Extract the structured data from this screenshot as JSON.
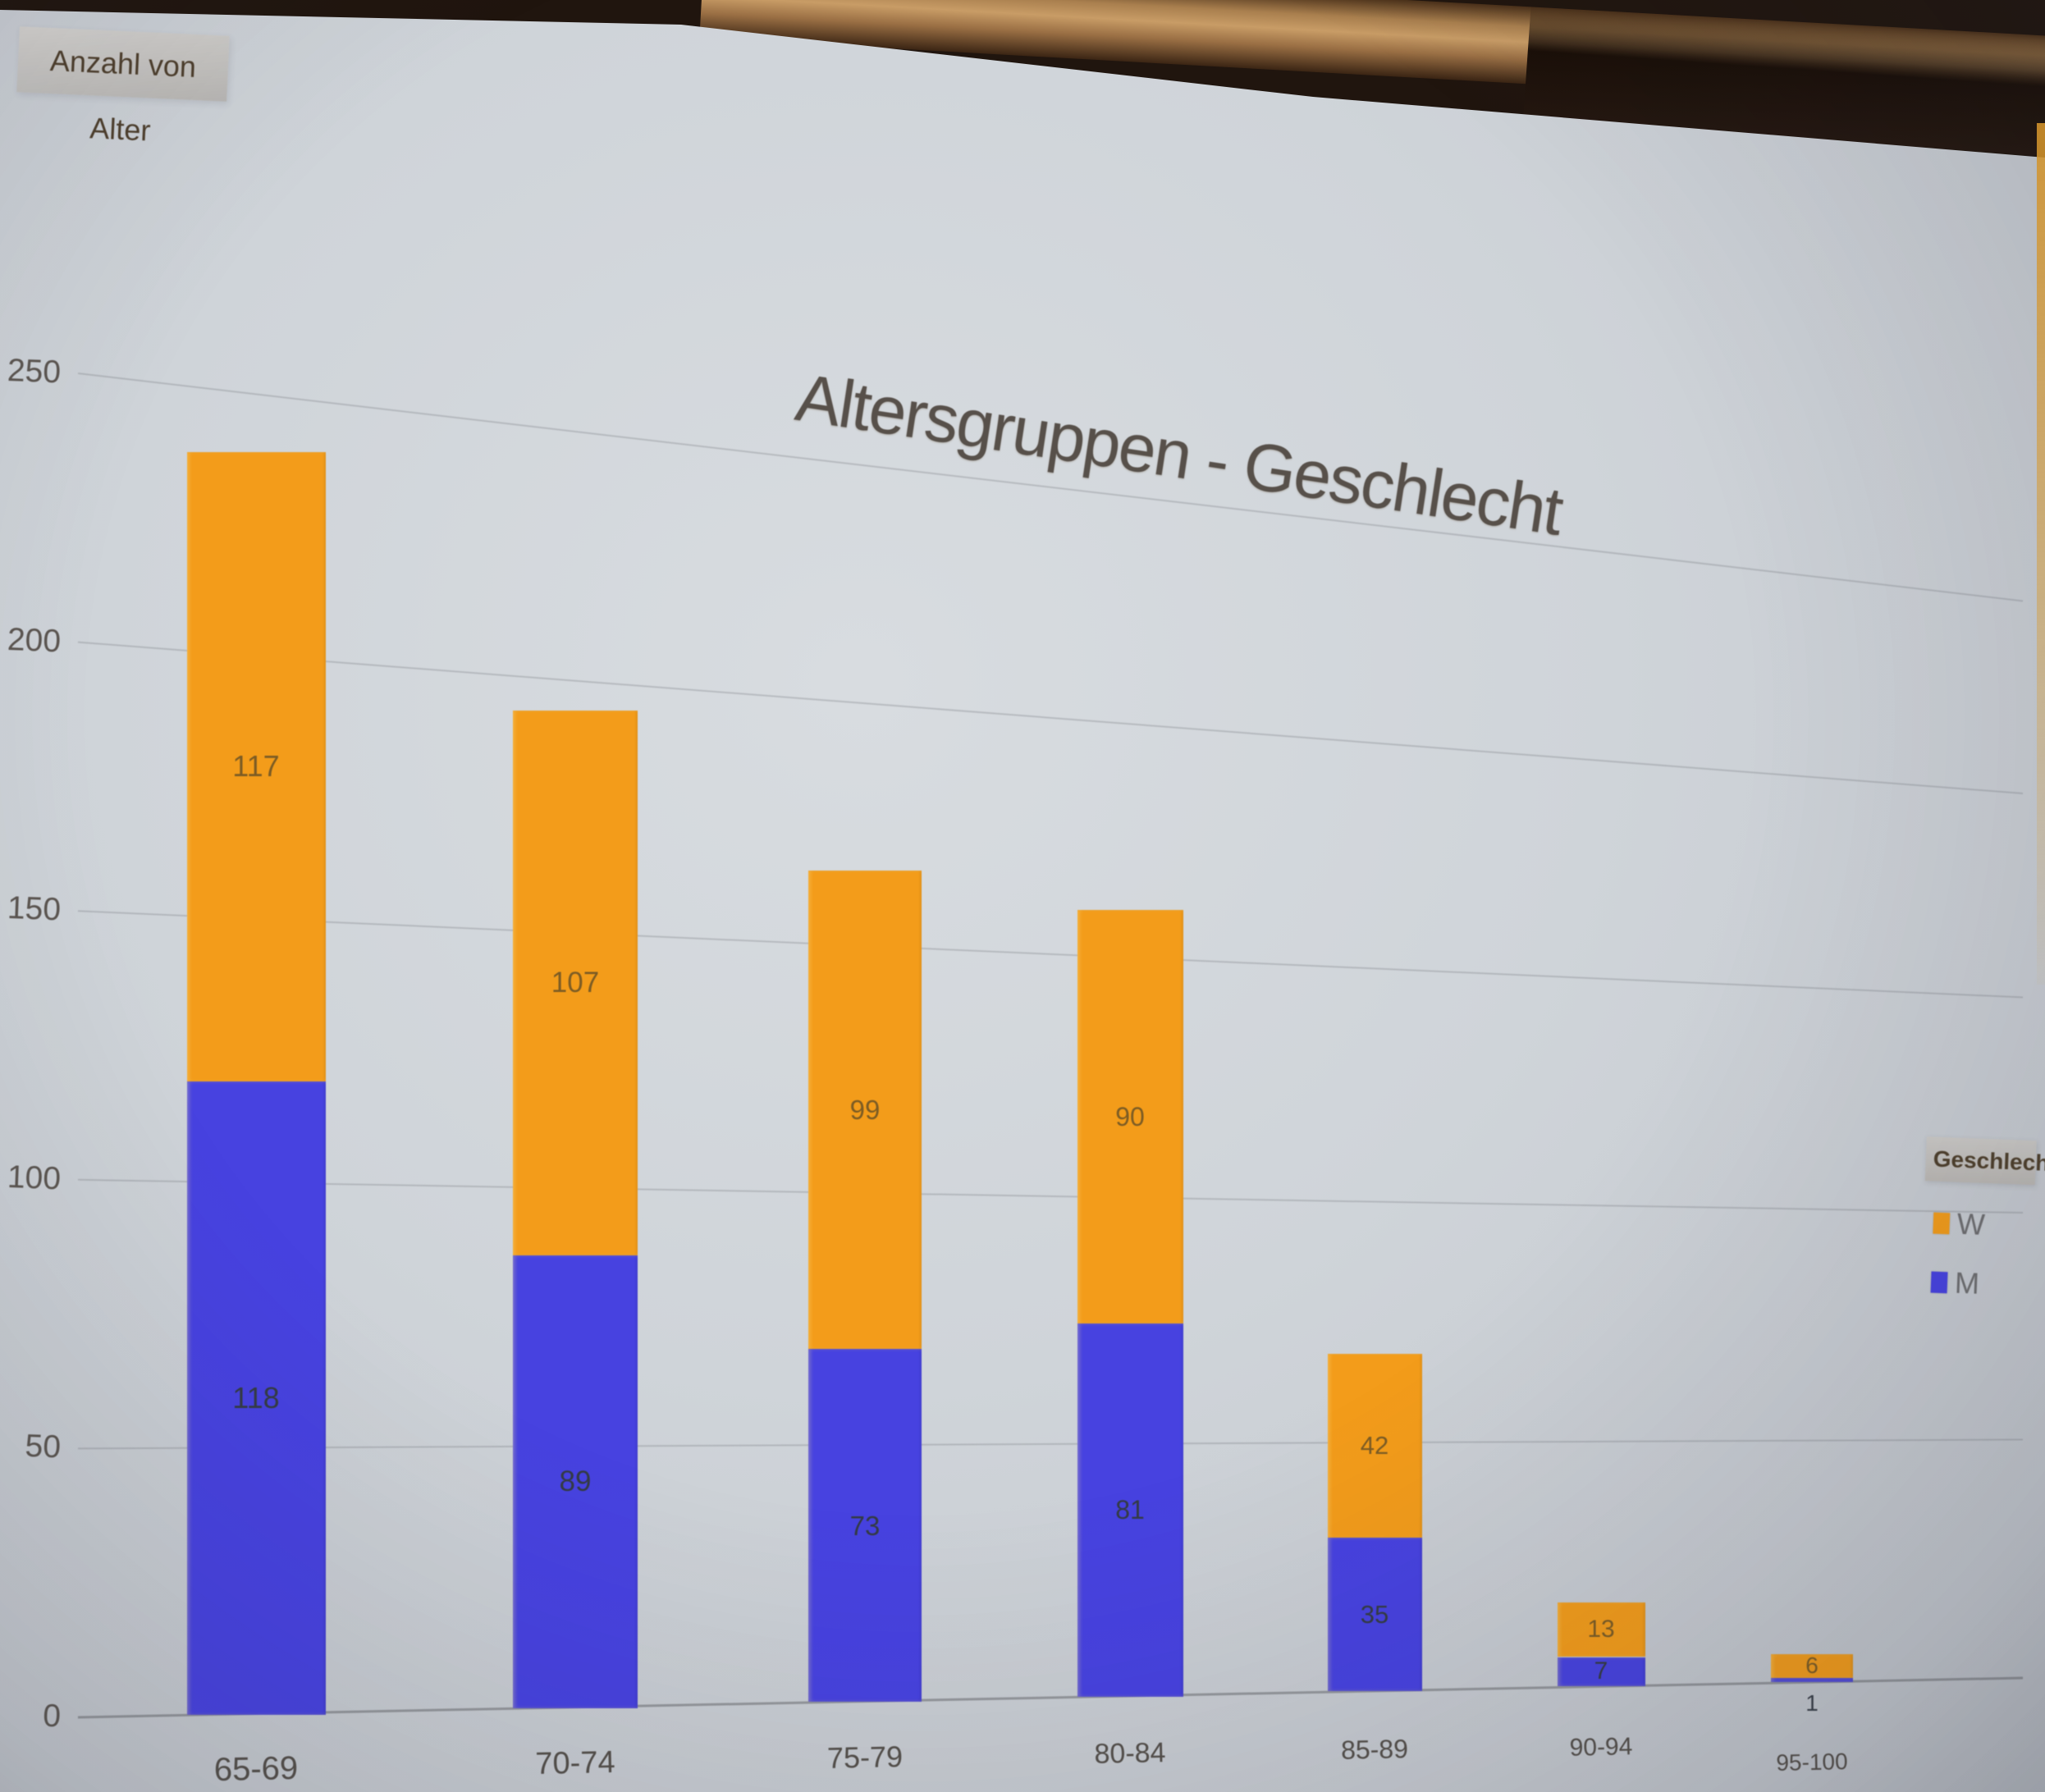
{
  "field_button": {
    "label": "Anzahl von Alter"
  },
  "legend": {
    "title": "Geschlecht",
    "items": [
      {
        "label": "W",
        "color": "#f59c16"
      },
      {
        "label": "M",
        "color": "#4742e4"
      }
    ]
  },
  "chart_data": {
    "type": "bar",
    "stacked": true,
    "title": "Altersgruppen - Geschlecht",
    "value_field": "Anzahl von Alter",
    "legend_field": "Geschlecht",
    "categories": [
      "65-69",
      "70-74",
      "75-79",
      "80-84",
      "85-89",
      "90-94",
      "95-100"
    ],
    "series": [
      {
        "name": "M",
        "color": "#4742e4",
        "values": [
          118,
          89,
          73,
          81,
          35,
          7,
          1
        ]
      },
      {
        "name": "W",
        "color": "#f59c16",
        "values": [
          117,
          107,
          99,
          90,
          42,
          13,
          6
        ]
      }
    ],
    "y_ticks": [
      250,
      200,
      150,
      100,
      50,
      0
    ],
    "ylim": [
      0,
      250
    ],
    "xlabel": "",
    "ylabel": "Anzahl von Alter",
    "grid": true,
    "legend_position": "right",
    "value_labels": true
  }
}
